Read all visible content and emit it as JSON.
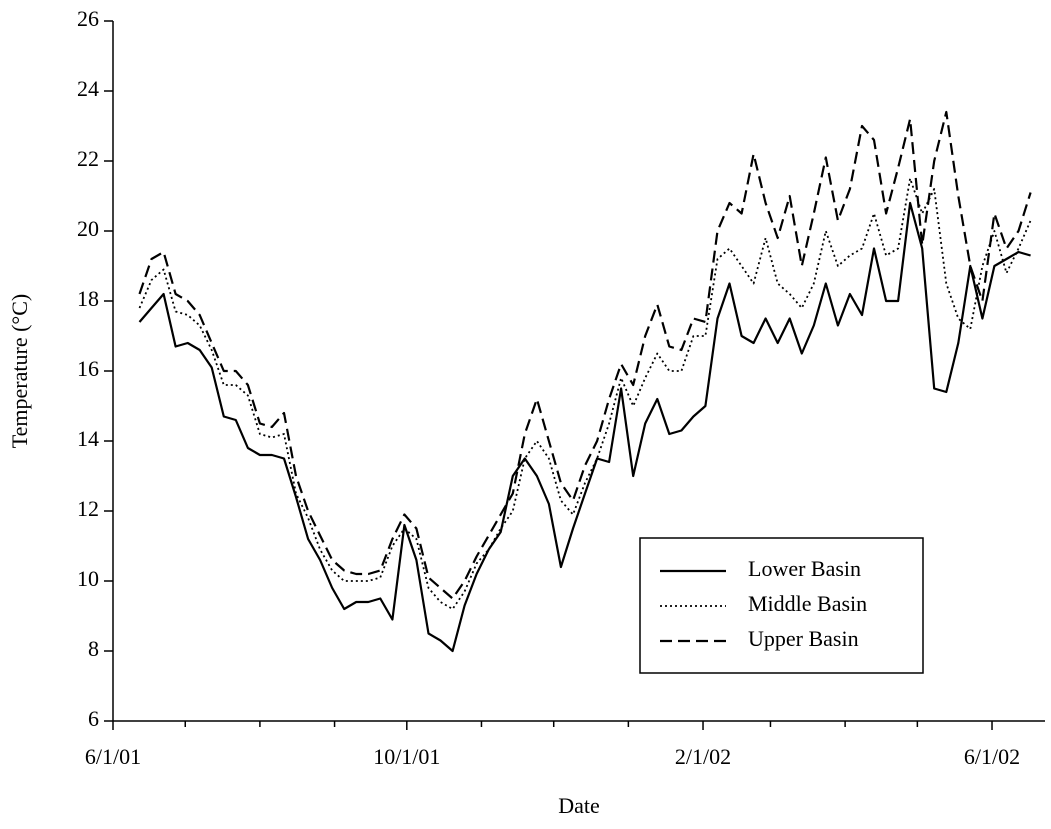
{
  "chart_data": {
    "type": "line",
    "x_label": "Date",
    "y_label": "Temperature (°C)",
    "x": [
      "2001-06-12",
      "2001-06-17",
      "2001-06-22",
      "2001-06-27",
      "2001-07-02",
      "2001-07-07",
      "2001-07-12",
      "2001-07-17",
      "2001-07-22",
      "2001-07-27",
      "2001-08-01",
      "2001-08-06",
      "2001-08-11",
      "2001-08-16",
      "2001-08-21",
      "2001-08-26",
      "2001-08-31",
      "2001-09-05",
      "2001-09-10",
      "2001-09-15",
      "2001-09-20",
      "2001-09-25",
      "2001-09-30",
      "2001-10-05",
      "2001-10-10",
      "2001-10-15",
      "2001-10-20",
      "2001-10-25",
      "2001-10-30",
      "2001-11-04",
      "2001-11-09",
      "2001-11-14",
      "2001-11-19",
      "2001-11-24",
      "2001-11-29",
      "2001-12-04",
      "2001-12-09",
      "2001-12-14",
      "2001-12-19",
      "2001-12-24",
      "2001-12-29",
      "2002-01-03",
      "2002-01-08",
      "2002-01-13",
      "2002-01-18",
      "2002-01-23",
      "2002-01-28",
      "2002-02-02",
      "2002-02-07",
      "2002-02-12",
      "2002-02-17",
      "2002-02-22",
      "2002-02-27",
      "2002-03-04",
      "2002-03-09",
      "2002-03-14",
      "2002-03-19",
      "2002-03-24",
      "2002-03-29",
      "2002-04-03",
      "2002-04-08",
      "2002-04-13",
      "2002-04-18",
      "2002-04-23",
      "2002-04-28",
      "2002-05-03",
      "2002-05-08",
      "2002-05-13",
      "2002-05-18",
      "2002-05-23",
      "2002-05-28",
      "2002-06-02",
      "2002-06-07",
      "2002-06-12",
      "2002-06-17"
    ],
    "series": [
      {
        "name": "Lower Basin",
        "color": "#000000",
        "style": "solid",
        "values": [
          17.4,
          17.8,
          18.2,
          16.7,
          16.8,
          16.6,
          16.1,
          14.7,
          14.6,
          13.8,
          13.6,
          13.6,
          13.5,
          12.4,
          11.2,
          10.6,
          9.8,
          9.2,
          9.4,
          9.4,
          9.5,
          8.9,
          11.6,
          10.6,
          8.5,
          8.3,
          8.0,
          9.3,
          10.2,
          10.9,
          11.4,
          13.0,
          13.5,
          13.0,
          12.2,
          10.4,
          11.5,
          12.5,
          13.5,
          13.4,
          15.5,
          13.0,
          14.5,
          15.2,
          14.2,
          14.3,
          14.7,
          15.0,
          17.5,
          18.5,
          17.0,
          16.8,
          17.5,
          16.8,
          17.5,
          16.5,
          17.3,
          18.5,
          17.3,
          18.2,
          17.6,
          19.5,
          18.0,
          18.0,
          20.8,
          19.5,
          15.5,
          15.4,
          16.8,
          19.0,
          17.5,
          19.0,
          19.2,
          19.4,
          19.3
        ]
      },
      {
        "name": "Middle Basin",
        "color": "#000000",
        "style": "dotted",
        "values": [
          17.8,
          18.6,
          18.9,
          17.7,
          17.6,
          17.3,
          16.6,
          15.6,
          15.6,
          15.3,
          14.2,
          14.1,
          14.2,
          12.5,
          11.8,
          10.9,
          10.3,
          10.0,
          10.0,
          10.0,
          10.1,
          11.0,
          11.5,
          11.2,
          9.8,
          9.4,
          9.2,
          9.7,
          10.5,
          10.9,
          11.5,
          12.0,
          13.5,
          14.0,
          13.5,
          12.3,
          11.9,
          12.8,
          13.5,
          14.5,
          15.8,
          15.0,
          15.8,
          16.5,
          16.0,
          16.0,
          17.0,
          17.0,
          19.2,
          19.5,
          19.0,
          18.5,
          19.8,
          18.5,
          18.2,
          17.8,
          18.5,
          20.0,
          19.0,
          19.3,
          19.5,
          20.5,
          19.3,
          19.5,
          21.5,
          20.5,
          21.2,
          18.5,
          17.5,
          17.2,
          19.0,
          20.0,
          18.8,
          19.5,
          20.3
        ]
      },
      {
        "name": "Upper Basin",
        "color": "#000000",
        "style": "dashed",
        "values": [
          18.2,
          19.2,
          19.4,
          18.2,
          18.0,
          17.6,
          16.8,
          16.0,
          16.0,
          15.6,
          14.5,
          14.4,
          14.8,
          13.0,
          12.0,
          11.3,
          10.6,
          10.3,
          10.2,
          10.2,
          10.3,
          11.2,
          11.9,
          11.5,
          10.1,
          9.8,
          9.5,
          10.0,
          10.7,
          11.3,
          11.9,
          12.5,
          14.2,
          15.2,
          14.0,
          12.8,
          12.3,
          13.3,
          14.0,
          15.2,
          16.2,
          15.6,
          17.0,
          17.9,
          16.7,
          16.6,
          17.5,
          17.4,
          20.0,
          20.8,
          20.5,
          22.2,
          20.8,
          19.8,
          21.0,
          19.0,
          20.5,
          22.1,
          20.3,
          21.2,
          23.0,
          22.6,
          20.5,
          21.8,
          23.2,
          19.6,
          22.0,
          23.4,
          21.0,
          19.0,
          18.0,
          20.5,
          19.5,
          20.0,
          21.1
        ]
      }
    ],
    "xlim": [
      "2001-06-01",
      "2002-06-23"
    ],
    "xticks": [
      {
        "value": "2001-06-01",
        "label": "6/1/01"
      },
      {
        "value": "2001-10-01",
        "label": "10/1/01"
      },
      {
        "value": "2002-02-01",
        "label": "2/1/02"
      },
      {
        "value": "2002-06-01",
        "label": "6/1/02"
      }
    ],
    "xminorticks": [
      "2001-07-01",
      "2001-08-01",
      "2001-09-01",
      "2001-11-01",
      "2001-12-01",
      "2002-01-01",
      "2002-03-01",
      "2002-04-01",
      "2002-05-01"
    ],
    "ylim": [
      6,
      26
    ],
    "yticks": [
      6,
      8,
      10,
      12,
      14,
      16,
      18,
      20,
      22,
      24,
      26
    ],
    "grid": false,
    "legend": "right"
  }
}
